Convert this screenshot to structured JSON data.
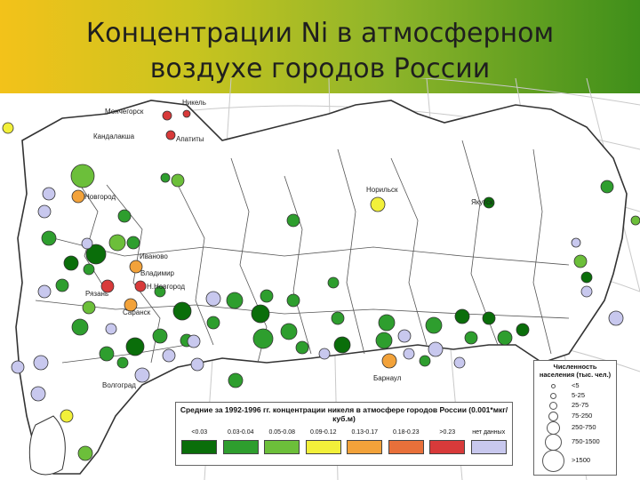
{
  "title": {
    "line1": "Концентрации Ni в атмосферном",
    "line2": "воздухе городов России"
  },
  "cities": [
    {
      "name": "Мончегорск",
      "category": "0.18-0.23"
    },
    {
      "name": "Никель",
      "category": "0.18-0.23"
    },
    {
      "name": "Кандалакша",
      "category": "0.18-0.23"
    },
    {
      "name": "Апатиты",
      "category": "0.18-0.23"
    },
    {
      "name": "Новгород",
      "category": "0.13-0.17"
    },
    {
      "name": "Иваново",
      "category": "0.05-0.08"
    },
    {
      "name": "Владимир",
      "category": "0.13-0.17"
    },
    {
      "name": "Н.Новгород",
      "category": "0.18-0.23"
    },
    {
      "name": "Рязань",
      "category": "0.09-0.12"
    },
    {
      "name": "Саранск",
      "category": "0.13-0.17"
    },
    {
      "name": "Волгоград",
      "category": "0.05-0.08"
    },
    {
      "name": "Норильск",
      "category": "0.09-0.12"
    },
    {
      "name": "Якутск",
      "category": "<0.03"
    },
    {
      "name": "Барнаул",
      "category": "0.13-0.17"
    }
  ],
  "legend": {
    "title": "Средние за 1992-1996 гг. концентрации никеля в атмосфере городов России (0.001*мкг/куб.м)",
    "categories": [
      {
        "label": "<0.03",
        "color": "#0a6e0a"
      },
      {
        "label": "0.03-0.04",
        "color": "#2e9e2e"
      },
      {
        "label": "0.05-0.08",
        "color": "#6cbf3a"
      },
      {
        "label": "0.09-0.12",
        "color": "#f2f03a"
      },
      {
        "label": "0.13-0.17",
        "color": "#f2a23a"
      },
      {
        "label": "0.18-0.23",
        "color": "#e8703a"
      },
      {
        "label": ">0.23",
        "color": "#d83a3a"
      },
      {
        "label": "нет данных",
        "color": "#c8c8ee"
      }
    ]
  },
  "size_legend": {
    "title": "Численность населения (тыс. чел.)",
    "items": [
      {
        "label": "<5"
      },
      {
        "label": "5-25"
      },
      {
        "label": "25-75"
      },
      {
        "label": "75-250"
      },
      {
        "label": "250-750"
      },
      {
        "label": "750-1500"
      },
      {
        "label": ">1500"
      }
    ]
  }
}
